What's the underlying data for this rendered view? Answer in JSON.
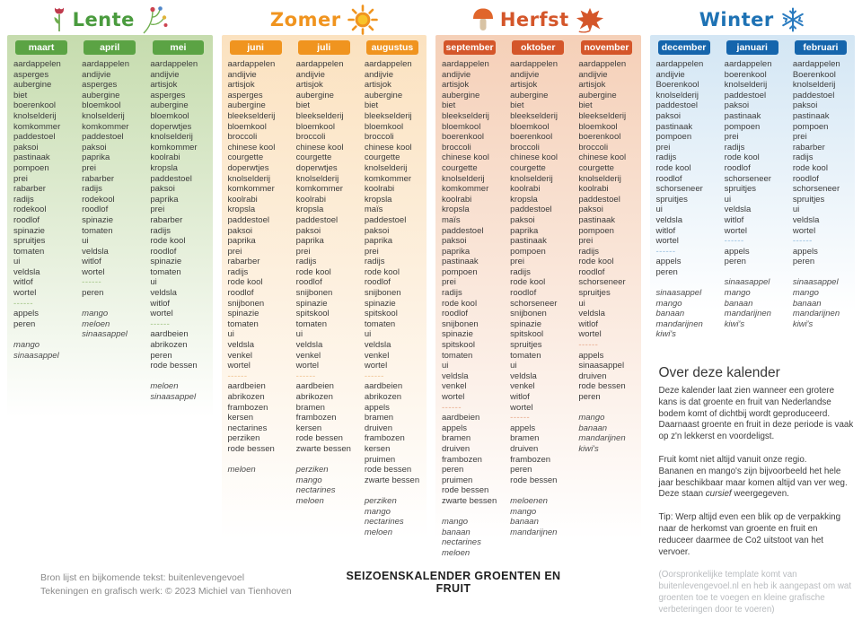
{
  "separator": "------",
  "footer": {
    "credit_line1": "Bron lijst en bijkomende tekst: buitenlevengevoel",
    "credit_line2": "Tekeningen en grafisch werk: © 2023 Michiel van Tienhoven",
    "poster_title": "SEIZOENSKALENDER GROENTEN EN FRUIT"
  },
  "about": {
    "heading": "Over deze kalender",
    "p1": "Deze kalender laat zien wanneer een grotere kans is dat groente en fruit van Nederlandse bodem komt of dichtbij wordt geproduceerd. Daarnaast groente en fruit in deze periode is vaak op z'n lekkerst en voordeligst.",
    "p2_line1": "Fruit komt niet altijd vanuit onze regio.",
    "p2a": "Bananen en mango's zijn bijvoorbeeld het hele jaar beschikbaar maar komen altijd van ver weg. Deze staan ",
    "p2_italic": "cursief",
    "p2b": " weergegeven.",
    "p3": "Tip: Werp altijd even een blik op de verpakking naar de herkomst van groente en fruit en reduceer daarmee de Co2 uitstoot van het vervoer.",
    "p4": "(Oorspronkelijke template komt van buitenlevengevoel.nl en heb ik aangepast om wat groenten toe te voegen en kleine grafische verbeteringen door te voeren)"
  },
  "seasons": [
    {
      "name": "Lente",
      "icon": "tulip-and-flower-sprig",
      "title_color": "#4a9b3e",
      "header_bg": "#5ba344",
      "panel_top": "#c6dcae",
      "dash_color": "#9cc07e",
      "months": [
        {
          "label": "maart",
          "veg": [
            "aardappelen",
            "asperges",
            "aubergine",
            "biet",
            "boerenkool",
            "knolselderij",
            "komkommer",
            "paddestoel",
            "paksoi",
            "pastinaak",
            "pompoen",
            "prei",
            "rabarber",
            "radijs",
            "rodekool",
            "roodlof",
            "spinazie",
            "spruitjes",
            "tomaten",
            "ui",
            "veldsla",
            "witlof",
            "wortel"
          ],
          "fruit": [
            "appels",
            "peren"
          ],
          "imported": [
            "mango",
            "sinaasappel"
          ]
        },
        {
          "label": "april",
          "veg": [
            "aardappelen",
            "andijvie",
            "asperges",
            "aubergine",
            "bloemkool",
            "knolselderij",
            "komkommer",
            "paddestoel",
            "paksoi",
            "paprika",
            "prei",
            "rabarber",
            "radijs",
            "rodekool",
            "roodlof",
            "spinazie",
            "tomaten",
            "ui",
            "veldsla",
            "witlof",
            "wortel"
          ],
          "fruit": [
            "peren"
          ],
          "imported": [
            "mango",
            "meloen",
            "sinaasappel"
          ]
        },
        {
          "label": "mei",
          "veg": [
            "aardappelen",
            "andijvie",
            "artisjok",
            "asperges",
            "aubergine",
            "bloemkool",
            "doperwtjes",
            "knolselderij",
            "komkommer",
            "koolrabi",
            "kropsla",
            "paddestoel",
            "paksoi",
            "paprika",
            "prei",
            "rabarber",
            "radijs",
            "rode kool",
            "roodlof",
            "spinazie",
            "tomaten",
            "ui",
            "veldsla",
            "witlof",
            "wortel"
          ],
          "fruit": [
            "aardbeien",
            "abrikozen",
            "peren",
            "rode bessen"
          ],
          "imported": [
            "meloen",
            "sinaasappel"
          ]
        }
      ]
    },
    {
      "name": "Zomer",
      "icon": "sun",
      "title_color": "#f0941f",
      "header_bg": "#f0941f",
      "panel_top": "#fbe2c0",
      "dash_color": "#eebf8a",
      "months": [
        {
          "label": "juni",
          "veg": [
            "aardappelen",
            "andijvie",
            "artisjok",
            "asperges",
            "aubergine",
            "bleekselderij",
            "bloemkool",
            "broccoli",
            "chinese kool",
            "courgette",
            "doperwtjes",
            "knolselderij",
            "komkommer",
            "koolrabi",
            "kropsla",
            "paddestoel",
            "paksoi",
            "paprika",
            "prei",
            "rabarber",
            "radijs",
            "rode kool",
            "roodlof",
            "snijbonen",
            "spinazie",
            "tomaten",
            "ui",
            "veldsla",
            "venkel",
            "wortel"
          ],
          "fruit": [
            "aardbeien",
            "abrikozen",
            "frambozen",
            "kersen",
            "nectarines",
            "perziken",
            "rode bessen"
          ],
          "imported": [
            "meloen"
          ]
        },
        {
          "label": "juli",
          "veg": [
            "aardappelen",
            "andijvie",
            "artisjok",
            "aubergine",
            "biet",
            "bleekselderij",
            "bloemkool",
            "broccoli",
            "chinese kool",
            "courgette",
            "doperwtjes",
            "knolselderij",
            "komkommer",
            "koolrabi",
            "kropsla",
            "paddestoel",
            "paksoi",
            "paprika",
            "prei",
            "radijs",
            "rode kool",
            "roodlof",
            "snijbonen",
            "spinazie",
            "spitskool",
            "tomaten",
            "ui",
            "veldsla",
            "venkel",
            "wortel"
          ],
          "fruit": [
            "aardbeien",
            "abrikozen",
            "bramen",
            "frambozen",
            "kersen",
            "rode bessen",
            "zwarte bessen"
          ],
          "imported": [
            "perziken",
            "mango",
            "nectarines",
            "meloen"
          ]
        },
        {
          "label": "augustus",
          "veg": [
            "aardappelen",
            "andijvie",
            "artisjok",
            "aubergine",
            "biet",
            "bleekselderij",
            "bloemkool",
            "broccoli",
            "chinese kool",
            "courgette",
            "knolselderij",
            "komkommer",
            "koolrabi",
            "kropsla",
            "maïs",
            "paddestoel",
            "paksoi",
            "paprika",
            "prei",
            "radijs",
            "rode kool",
            "roodlof",
            "snijbonen",
            "spinazie",
            "spitskool",
            "tomaten",
            "ui",
            "veldsla",
            "venkel",
            "wortel"
          ],
          "fruit": [
            "aardbeien",
            "abrikozen",
            "appels",
            "bramen",
            "druiven",
            "frambozen",
            "kersen",
            "pruimen",
            "rode bessen",
            "zwarte bessen"
          ],
          "imported": [
            "perziken",
            "mango",
            "nectarines",
            "meloen"
          ]
        }
      ]
    },
    {
      "name": "Herfst",
      "icon": "mushroom-and-maple-leaf",
      "title_color": "#d4562a",
      "header_bg": "#d4562a",
      "panel_top": "#f5d0b8",
      "dash_color": "#e5a585",
      "months": [
        {
          "label": "september",
          "veg": [
            "aardappelen",
            "andijvie",
            "artisjok",
            "aubergine",
            "biet",
            "bleekselderij",
            "bloemkool",
            "boerenkool",
            "broccoli",
            "chinese kool",
            "courgette",
            "knolselderij",
            "komkommer",
            "koolrabi",
            "kropsla",
            "maïs",
            "paddestoel",
            "paksoi",
            "paprika",
            "pastinaak",
            "pompoen",
            "prei",
            "radijs",
            "rode kool",
            "roodlof",
            "snijbonen",
            "spinazie",
            "spitskool",
            "tomaten",
            "ui",
            "veldsla",
            "venkel",
            "wortel"
          ],
          "fruit": [
            "aardbeien",
            "appels",
            "bramen",
            "druiven",
            "frambozen",
            "peren",
            "pruimen",
            "rode bessen",
            "zwarte bessen"
          ],
          "imported": [
            "mango",
            "banaan",
            "nectarines",
            "meloen"
          ]
        },
        {
          "label": "oktober",
          "veg": [
            "aardappelen",
            "andijvie",
            "artisjok",
            "aubergine",
            "biet",
            "bleekselderij",
            "bloemkool",
            "boerenkool",
            "broccoli",
            "chinese kool",
            "courgette",
            "knolselderij",
            "koolrabi",
            "kropsla",
            "paddestoel",
            "paksoi",
            "paprika",
            "pastinaak",
            "pompoen",
            "prei",
            "radijs",
            "rode kool",
            "roodlof",
            "schorseneer",
            "snijbonen",
            "spinazie",
            "spitskool",
            "spruitjes",
            "tomaten",
            "ui",
            "veldsla",
            "venkel",
            "witlof",
            "wortel"
          ],
          "fruit": [
            "appels",
            "bramen",
            "druiven",
            "frambozen",
            "peren",
            "rode bessen"
          ],
          "imported": [
            "meloenen",
            "mango",
            "banaan",
            "mandarijnen"
          ]
        },
        {
          "label": "november",
          "veg": [
            "aardappelen",
            "andijvie",
            "artisjok",
            "aubergine",
            "biet",
            "bleekselderij",
            "bloemkool",
            "boerenkool",
            "broccoli",
            "chinese kool",
            "courgette",
            "knolselderij",
            "koolrabi",
            "paddestoel",
            "paksoi",
            "pastinaak",
            "pompoen",
            "prei",
            "radijs",
            "rode kool",
            "roodlof",
            "schorseneer",
            "spruitjes",
            "ui",
            "veldsla",
            "witlof",
            "wortel"
          ],
          "fruit": [
            "appels",
            "sinaasappel",
            "druiven",
            "rode bessen",
            "peren"
          ],
          "imported": [
            "mango",
            "banaan",
            "mandarijnen",
            "kiwi's"
          ]
        }
      ]
    },
    {
      "name": "Winter",
      "icon": "snowflake",
      "title_color": "#1e72b4",
      "header_bg": "#1565ac",
      "panel_top": "#d3e6f4",
      "dash_color": "#8fb9da",
      "months": [
        {
          "label": "december",
          "veg": [
            "aardappelen",
            "andijvie",
            "Boerenkool",
            "knolselderij",
            "paddestoel",
            "paksoi",
            "pastinaak",
            "pompoen",
            "prei",
            "radijs",
            "rode kool",
            "roodlof",
            "schorseneer",
            "spruitjes",
            "ui",
            "veldsla",
            "witlof",
            "wortel"
          ],
          "fruit": [
            "appels",
            "peren"
          ],
          "imported": [
            "sinaasappel",
            "mango",
            "banaan",
            "mandarijnen",
            "kiwi's"
          ]
        },
        {
          "label": "januari",
          "veg": [
            "aardappelen",
            "boerenkool",
            "knolselderij",
            "paddestoel",
            "paksoi",
            "pastinaak",
            "pompoen",
            "prei",
            "radijs",
            "rode kool",
            "roodlof",
            "schorseneer",
            "spruitjes",
            "ui",
            "veldsla",
            "witlof",
            "wortel"
          ],
          "fruit": [
            "appels",
            "peren"
          ],
          "imported": [
            "sinaasappel",
            "mango",
            "banaan",
            "mandarijnen",
            "kiwi's"
          ]
        },
        {
          "label": "februari",
          "veg": [
            "aardappelen",
            "Boerenkool",
            "knolselderij",
            "paddestoel",
            "paksoi",
            "pastinaak",
            "pompoen",
            "prei",
            "rabarber",
            "radijs",
            "rode kool",
            "roodlof",
            "schorseneer",
            "spruitjes",
            "ui",
            "veldsla",
            "wortel"
          ],
          "fruit": [
            "appels",
            "peren"
          ],
          "imported": [
            "sinaasappel",
            "mango",
            "banaan",
            "mandarijnen",
            "kiwi's"
          ]
        }
      ]
    }
  ]
}
